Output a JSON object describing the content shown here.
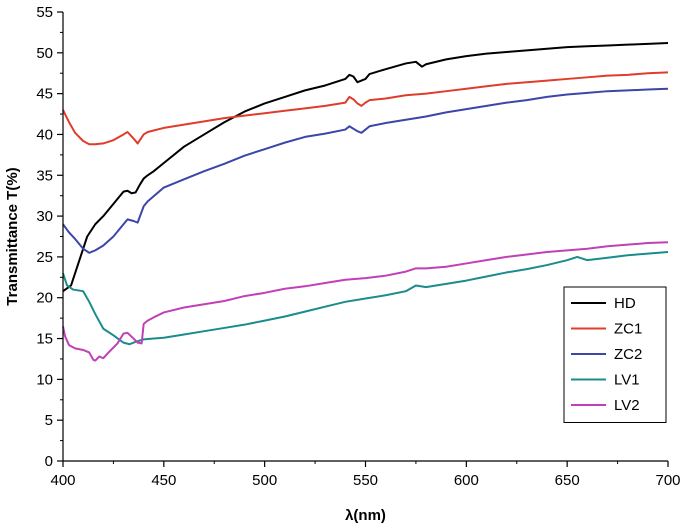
{
  "chart_data": {
    "type": "line",
    "title": "",
    "xlabel": "λ(nm)",
    "ylabel": "Transmittance T(%)",
    "xlim": [
      400,
      700
    ],
    "ylim": [
      0,
      55
    ],
    "xticks": [
      400,
      450,
      500,
      550,
      600,
      650,
      700
    ],
    "yticks": [
      0,
      5,
      10,
      15,
      20,
      25,
      30,
      35,
      40,
      45,
      50,
      55
    ],
    "grid": false,
    "legend_position": "bottom-right",
    "series": [
      {
        "name": "HD",
        "color": "#000000",
        "x": [
          400,
          404,
          408,
          412,
          416,
          420,
          425,
          430,
          432,
          434,
          436,
          438,
          440,
          442,
          445,
          450,
          460,
          470,
          480,
          490,
          500,
          510,
          520,
          530,
          540,
          542,
          544,
          546,
          548,
          550,
          552,
          560,
          570,
          575,
          578,
          580,
          590,
          600,
          610,
          620,
          630,
          640,
          650,
          660,
          670,
          680,
          690,
          700
        ],
        "y": [
          20.8,
          21.5,
          24.5,
          27.5,
          29.0,
          30.0,
          31.5,
          33.0,
          33.1,
          32.8,
          32.9,
          33.8,
          34.6,
          35.0,
          35.5,
          36.5,
          38.5,
          40.0,
          41.5,
          42.8,
          43.8,
          44.6,
          45.4,
          46.0,
          46.8,
          47.3,
          47.1,
          46.4,
          46.6,
          46.8,
          47.4,
          48.0,
          48.7,
          48.9,
          48.3,
          48.6,
          49.2,
          49.6,
          49.9,
          50.1,
          50.3,
          50.5,
          50.7,
          50.8,
          50.9,
          51.0,
          51.1,
          51.2
        ]
      },
      {
        "name": "ZC1",
        "color": "#e03c2c",
        "x": [
          400,
          403,
          406,
          410,
          413,
          416,
          420,
          425,
          430,
          432,
          435,
          437,
          440,
          442,
          450,
          460,
          470,
          480,
          490,
          500,
          510,
          520,
          530,
          540,
          542,
          544,
          546,
          548,
          550,
          552,
          560,
          570,
          580,
          590,
          600,
          610,
          620,
          630,
          640,
          650,
          660,
          670,
          680,
          690,
          700
        ],
        "y": [
          43.0,
          41.5,
          40.2,
          39.2,
          38.8,
          38.8,
          38.9,
          39.3,
          40.0,
          40.3,
          39.5,
          38.9,
          40.0,
          40.3,
          40.8,
          41.2,
          41.6,
          42.0,
          42.3,
          42.6,
          42.9,
          43.2,
          43.5,
          43.9,
          44.6,
          44.3,
          43.8,
          43.5,
          43.9,
          44.2,
          44.4,
          44.8,
          45.0,
          45.3,
          45.6,
          45.9,
          46.2,
          46.4,
          46.6,
          46.8,
          47.0,
          47.2,
          47.3,
          47.5,
          47.6
        ]
      },
      {
        "name": "ZC2",
        "color": "#3c46a8",
        "x": [
          400,
          403,
          406,
          410,
          413,
          416,
          420,
          425,
          430,
          432,
          435,
          437,
          440,
          442,
          450,
          460,
          470,
          480,
          490,
          500,
          510,
          520,
          530,
          540,
          542,
          544,
          546,
          548,
          550,
          552,
          560,
          570,
          580,
          590,
          600,
          610,
          620,
          630,
          640,
          650,
          660,
          670,
          680,
          690,
          700
        ],
        "y": [
          29.0,
          28.0,
          27.2,
          26.0,
          25.5,
          25.8,
          26.4,
          27.5,
          29.0,
          29.6,
          29.4,
          29.2,
          31.2,
          31.8,
          33.5,
          34.5,
          35.5,
          36.4,
          37.4,
          38.2,
          39.0,
          39.7,
          40.1,
          40.6,
          41.0,
          40.7,
          40.4,
          40.2,
          40.6,
          41.0,
          41.4,
          41.8,
          42.2,
          42.7,
          43.1,
          43.5,
          43.9,
          44.2,
          44.6,
          44.9,
          45.1,
          45.3,
          45.4,
          45.5,
          45.6
        ]
      },
      {
        "name": "LV1",
        "color": "#1a8c8c",
        "x": [
          400,
          402,
          405,
          410,
          413,
          416,
          420,
          425,
          430,
          433,
          436,
          440,
          445,
          450,
          460,
          470,
          480,
          490,
          500,
          510,
          520,
          530,
          540,
          550,
          560,
          570,
          575,
          580,
          590,
          600,
          610,
          620,
          630,
          640,
          650,
          655,
          660,
          670,
          680,
          690,
          700
        ],
        "y": [
          23.0,
          21.5,
          21.0,
          20.8,
          19.5,
          18.0,
          16.2,
          15.4,
          14.5,
          14.3,
          14.6,
          14.9,
          15.0,
          15.1,
          15.5,
          15.9,
          16.3,
          16.7,
          17.2,
          17.7,
          18.3,
          18.9,
          19.5,
          19.9,
          20.3,
          20.8,
          21.5,
          21.3,
          21.7,
          22.1,
          22.6,
          23.1,
          23.5,
          24.0,
          24.6,
          25.0,
          24.6,
          24.9,
          25.2,
          25.4,
          25.6
        ]
      },
      {
        "name": "LV2",
        "color": "#c040b8",
        "x": [
          400,
          401,
          403,
          406,
          410,
          413,
          415,
          416,
          418,
          420,
          423,
          427,
          430,
          432,
          435,
          437,
          439,
          440,
          442,
          445,
          450,
          460,
          470,
          480,
          490,
          500,
          510,
          520,
          530,
          540,
          550,
          560,
          570,
          575,
          580,
          590,
          600,
          610,
          620,
          630,
          640,
          650,
          660,
          670,
          680,
          690,
          700
        ],
        "y": [
          16.5,
          15.3,
          14.2,
          13.8,
          13.6,
          13.3,
          12.4,
          12.3,
          12.8,
          12.6,
          13.4,
          14.4,
          15.6,
          15.7,
          15.0,
          14.5,
          14.4,
          16.8,
          17.2,
          17.6,
          18.2,
          18.8,
          19.2,
          19.6,
          20.2,
          20.6,
          21.1,
          21.4,
          21.8,
          22.2,
          22.4,
          22.7,
          23.2,
          23.6,
          23.6,
          23.8,
          24.2,
          24.6,
          25.0,
          25.3,
          25.6,
          25.8,
          26.0,
          26.3,
          26.5,
          26.7,
          26.8
        ]
      }
    ]
  }
}
